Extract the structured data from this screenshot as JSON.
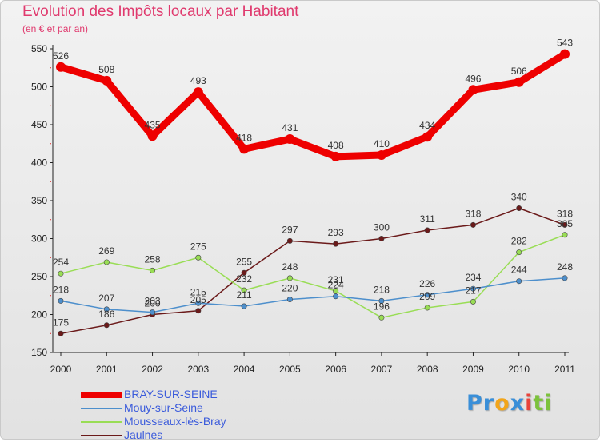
{
  "chart_data": {
    "type": "line",
    "title": "Evolution des Impôts locaux par Habitant",
    "subtitle": "(en € et par an)",
    "x": [
      "2000",
      "2001",
      "2002",
      "2003",
      "2004",
      "2005",
      "2006",
      "2007",
      "2008",
      "2009",
      "2010",
      "2011"
    ],
    "ylim": [
      150,
      550
    ],
    "yticks": [
      150,
      200,
      250,
      300,
      350,
      400,
      450,
      500,
      550
    ],
    "grid": false,
    "legend_position": "bottom-left",
    "series": [
      {
        "name": "BRAY-SUR-SEINE",
        "color": "#ee0000",
        "values": [
          526,
          508,
          435,
          493,
          418,
          431,
          408,
          410,
          434,
          496,
          506,
          543
        ]
      },
      {
        "name": "Mouy-sur-Seine",
        "color": "#4d8fcc",
        "values": [
          218,
          207,
          203,
          215,
          211,
          220,
          224,
          218,
          226,
          234,
          244,
          248
        ]
      },
      {
        "name": "Mousseaux-lès-Bray",
        "color": "#99dd55",
        "values": [
          254,
          269,
          258,
          275,
          232,
          248,
          231,
          196,
          209,
          217,
          282,
          305
        ]
      },
      {
        "name": "Jaulnes",
        "color": "#6b1a1a",
        "values": [
          175,
          186,
          200,
          205,
          255,
          297,
          293,
          300,
          311,
          318,
          340,
          318
        ]
      }
    ]
  },
  "logo": {
    "letters": [
      "P",
      "r",
      "o",
      "x",
      "i",
      "t",
      "i"
    ],
    "colors": [
      "#3a8fd8",
      "#3a8fd8",
      "#f2a51a",
      "#3a8fd8",
      "#e8423a",
      "#7cc23b",
      "#7cc23b"
    ]
  }
}
